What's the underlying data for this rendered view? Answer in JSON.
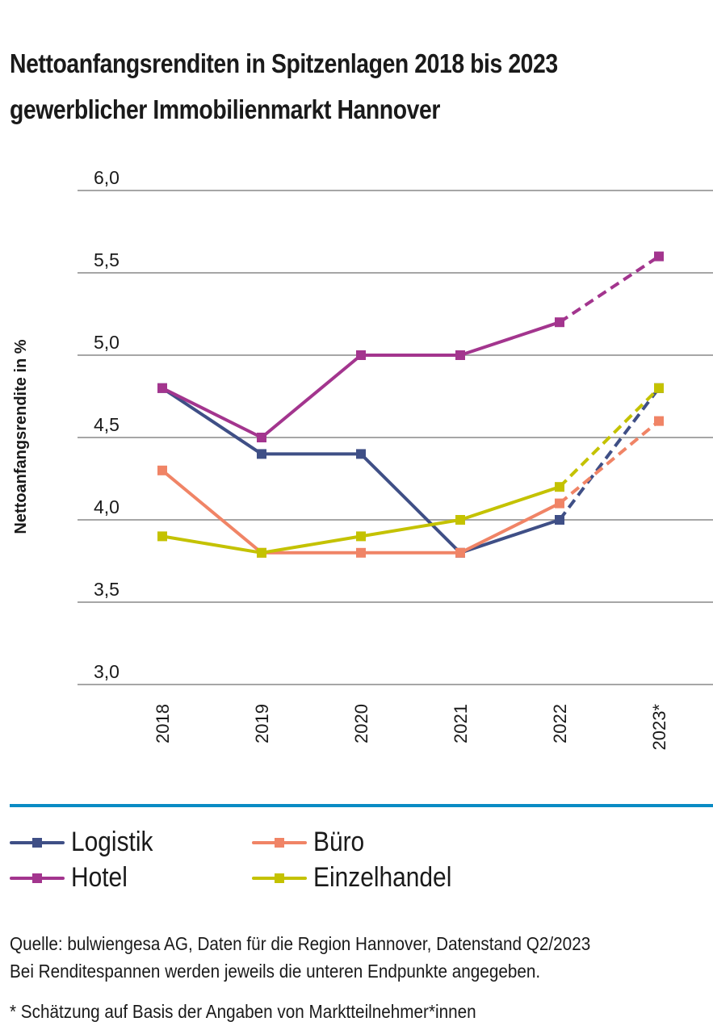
{
  "header": {
    "title_line1": "Nettoanfangsrenditen in Spitzenlagen 2018 bis 2023",
    "title_line2": "gewerblicher Immobilienmarkt Hannover"
  },
  "chart_data": {
    "type": "line",
    "title": "Nettoanfangsrenditen in Spitzenlagen 2018 bis 2023 gewerblicher Immobilienmarkt Hannover",
    "xlabel": "",
    "ylabel": "Nettoanfangsrendite in %",
    "categories": [
      "2018",
      "2019",
      "2020",
      "2021",
      "2022",
      "2023*"
    ],
    "ylim": [
      3.0,
      6.0
    ],
    "yticks": [
      3.0,
      3.5,
      4.0,
      4.5,
      5.0,
      5.5,
      6.0
    ],
    "ytick_labels": [
      "3,0",
      "3,5",
      "4,0",
      "4,5",
      "5,0",
      "5,5",
      "6,0"
    ],
    "grid": true,
    "legend_position": "bottom",
    "estimated_from_index": 4,
    "series": [
      {
        "name": "Logistik",
        "color": "#3f4f86",
        "values": [
          4.8,
          4.4,
          4.4,
          3.8,
          4.0,
          4.8
        ]
      },
      {
        "name": "Hotel",
        "color": "#a3358e",
        "values": [
          4.8,
          4.5,
          5.0,
          5.0,
          5.2,
          5.6
        ]
      },
      {
        "name": "Büro",
        "color": "#f08466",
        "values": [
          4.3,
          3.8,
          3.8,
          3.8,
          4.1,
          4.6
        ]
      },
      {
        "name": "Einzelhandel",
        "color": "#c4c200",
        "values": [
          3.9,
          3.8,
          3.9,
          4.0,
          4.2,
          4.8
        ]
      }
    ]
  },
  "legend": {
    "items": [
      {
        "label": "Logistik",
        "color": "#3f4f86"
      },
      {
        "label": "Büro",
        "color": "#f08466"
      },
      {
        "label": "Hotel",
        "color": "#a3358e"
      },
      {
        "label": "Einzelhandel",
        "color": "#c4c200"
      }
    ]
  },
  "colors": {
    "divider": "#0a8bc4",
    "grid": "#a6a6a6"
  },
  "footer": {
    "source": "Quelle: bulwiengesa AG, Daten für die Region Hannover, Datenstand Q2/2023",
    "note": "Bei Renditespannen werden jeweils die unteren Endpunkte angegeben.",
    "footnote": "* Schätzung auf Basis der Angaben von Marktteilnehmer*innen"
  }
}
